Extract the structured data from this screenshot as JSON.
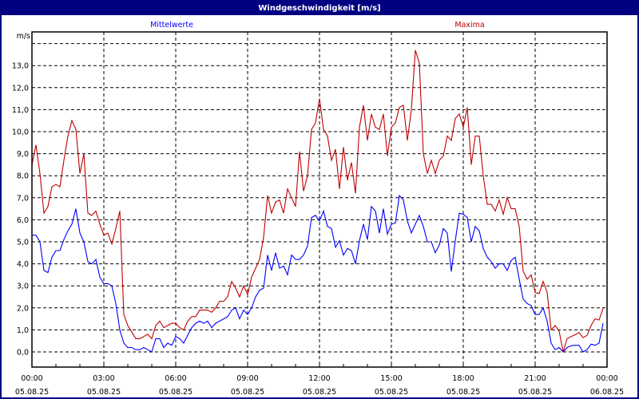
{
  "window": {
    "title": "Windgeschwindigkeit [m/s]"
  },
  "chart_data": {
    "type": "line",
    "title": "Windgeschwindigkeit [m/s]",
    "ylabel": "m/s",
    "ylim": [
      -0.7,
      14.5
    ],
    "yticks": [
      "0,0",
      "1,0",
      "2,0",
      "3,0",
      "4,0",
      "5,0",
      "6,0",
      "7,0",
      "8,0",
      "9,0",
      "10,0",
      "11,0",
      "12,0",
      "13,0"
    ],
    "xticks": [
      {
        "time": "00:00",
        "date": "05.08.25"
      },
      {
        "time": "03:00",
        "date": "05.08.25"
      },
      {
        "time": "06:00",
        "date": "05.08.25"
      },
      {
        "time": "09:00",
        "date": "05.08.25"
      },
      {
        "time": "12:00",
        "date": "05.08.25"
      },
      {
        "time": "15:00",
        "date": "05.08.25"
      },
      {
        "time": "18:00",
        "date": "05.08.25"
      },
      {
        "time": "21:00",
        "date": "05.08.25"
      },
      {
        "time": "00:00",
        "date": "06.08.25"
      }
    ],
    "xrange": [
      "05.08.25 00:00",
      "06.08.25 00:00"
    ],
    "grid": true,
    "sample_interval": "10 min",
    "series": [
      {
        "name": "Mittelwerte",
        "color": "#0000ff",
        "values": [
          5.3,
          5.3,
          5.0,
          3.7,
          3.6,
          4.3,
          4.6,
          4.6,
          5.1,
          5.5,
          5.8,
          6.5,
          5.4,
          5.0,
          4.1,
          4.0,
          4.2,
          3.4,
          3.1,
          3.1,
          3.0,
          2.2,
          1.0,
          0.4,
          0.2,
          0.2,
          0.1,
          0.1,
          0.2,
          0.1,
          0.0,
          0.6,
          0.6,
          0.2,
          0.4,
          0.3,
          0.7,
          0.6,
          0.4,
          0.76,
          1.1,
          1.3,
          1.4,
          1.3,
          1.4,
          1.1,
          1.3,
          1.4,
          1.5,
          1.6,
          1.9,
          2.0,
          1.5,
          1.9,
          1.7,
          2.0,
          2.5,
          2.8,
          2.9,
          4.4,
          3.7,
          4.5,
          3.8,
          3.9,
          3.5,
          4.4,
          4.2,
          4.2,
          4.4,
          4.8,
          6.1,
          6.2,
          5.95,
          6.4,
          5.7,
          5.6,
          4.75,
          5.05,
          4.4,
          4.7,
          4.6,
          4.0,
          5.05,
          5.8,
          5.1,
          6.6,
          6.4,
          5.4,
          6.5,
          5.35,
          5.8,
          5.85,
          7.1,
          6.9,
          5.95,
          5.4,
          5.8,
          6.2,
          5.7,
          5.0,
          5.0,
          4.5,
          4.85,
          5.6,
          5.4,
          3.65,
          5.05,
          6.3,
          6.25,
          6.1,
          5.0,
          5.7,
          5.5,
          4.7,
          4.3,
          4.1,
          3.8,
          4.0,
          4.0,
          3.7,
          4.15,
          4.3,
          3.3,
          2.4,
          2.2,
          2.1,
          1.7,
          1.7,
          2.0,
          1.4,
          0.4,
          0.1,
          0.2,
          0.0,
          0.2,
          0.28,
          0.3,
          0.3,
          0.0,
          0.1,
          0.35,
          0.3,
          0.4,
          1.3
        ]
      },
      {
        "name": "Maxima",
        "color": "#c00000",
        "values": [
          8.5,
          9.4,
          8.1,
          6.3,
          6.6,
          7.5,
          7.6,
          7.5,
          8.7,
          9.8,
          10.5,
          10.1,
          8.1,
          9.0,
          6.3,
          6.2,
          6.4,
          5.8,
          5.3,
          5.4,
          4.9,
          5.6,
          6.4,
          1.7,
          1.2,
          0.9,
          0.6,
          0.6,
          0.7,
          0.8,
          0.6,
          1.2,
          1.4,
          1.1,
          1.2,
          1.3,
          1.3,
          1.1,
          1.0,
          1.4,
          1.6,
          1.6,
          1.9,
          1.9,
          1.9,
          1.8,
          2.0,
          2.3,
          2.3,
          2.5,
          3.2,
          2.9,
          2.5,
          3.0,
          2.6,
          3.4,
          3.8,
          4.2,
          5.2,
          7.1,
          6.3,
          6.8,
          6.9,
          6.3,
          7.4,
          7.0,
          6.6,
          9.1,
          7.3,
          8.0,
          10.1,
          10.4,
          11.5,
          10.1,
          9.8,
          8.7,
          9.2,
          7.4,
          9.3,
          7.8,
          8.6,
          7.2,
          10.2,
          11.2,
          9.6,
          10.8,
          10.2,
          10.1,
          10.8,
          8.9,
          10.2,
          10.4,
          11.1,
          11.2,
          9.6,
          11.0,
          13.7,
          13.1,
          9.0,
          8.1,
          8.7,
          8.1,
          8.7,
          8.9,
          9.8,
          9.6,
          10.6,
          10.8,
          10.2,
          11.1,
          8.5,
          9.8,
          9.8,
          8.0,
          6.7,
          6.7,
          6.4,
          6.9,
          6.25,
          7.0,
          6.5,
          6.5,
          5.7,
          3.66,
          3.3,
          3.5,
          2.7,
          2.65,
          3.2,
          2.7,
          1.0,
          1.2,
          0.95,
          0.0,
          0.6,
          0.7,
          0.78,
          0.88,
          0.65,
          0.75,
          1.2,
          1.5,
          1.45,
          1.97
        ]
      }
    ]
  }
}
